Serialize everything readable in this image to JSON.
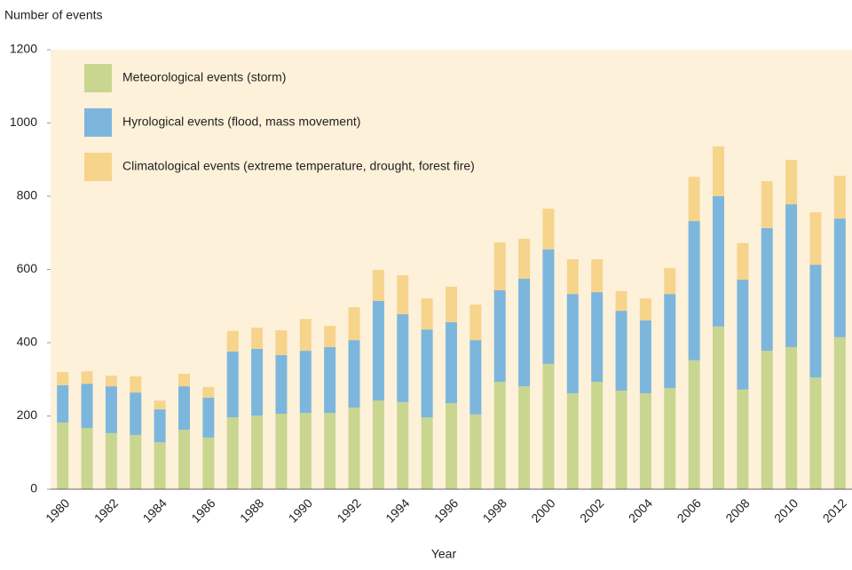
{
  "chart_data": {
    "type": "stacked_bar",
    "y_label": "Number of events",
    "x_label": "Year",
    "categories": [
      "1980",
      null,
      "1982",
      null,
      "1984",
      null,
      "1986",
      null,
      "1988",
      null,
      "1990",
      null,
      "1992",
      null,
      "1994",
      null,
      "1996",
      null,
      "1998",
      null,
      "2000",
      null,
      "2002",
      null,
      "2004",
      null,
      "2006",
      null,
      "2008",
      null,
      "2010",
      null,
      "2012"
    ],
    "series": [
      {
        "name": "Meteorological events (storm)",
        "color": "#c9d68f",
        "values": [
          182,
          167,
          153,
          148,
          128,
          162,
          141,
          196,
          201,
          206,
          208,
          208,
          223,
          242,
          238,
          196,
          235,
          204,
          293,
          281,
          342,
          262,
          293,
          269,
          262,
          276,
          352,
          444,
          272,
          378,
          388,
          305,
          415
        ]
      },
      {
        "name": "Hyrological events (flood, mass movement)",
        "color": "#7db6dd",
        "values": [
          102,
          121,
          128,
          116,
          90,
          119,
          109,
          180,
          182,
          160,
          170,
          180,
          184,
          272,
          240,
          240,
          221,
          203,
          250,
          294,
          313,
          271,
          245,
          218,
          199,
          257,
          380,
          356,
          300,
          335,
          390,
          308,
          324
        ]
      },
      {
        "name": "Climatological events (extreme temperature, drought, forest fire)",
        "color": "#f6d48b",
        "values": [
          36,
          34,
          29,
          44,
          24,
          34,
          29,
          56,
          58,
          68,
          87,
          58,
          90,
          85,
          106,
          85,
          97,
          97,
          131,
          109,
          111,
          95,
          90,
          54,
          60,
          71,
          121,
          136,
          100,
          128,
          121,
          143,
          117
        ]
      }
    ],
    "ylim": [
      0,
      1200
    ],
    "yticks": [
      0,
      200,
      400,
      600,
      800,
      1000,
      1200
    ],
    "grid": false,
    "legend": "top-left",
    "background": "#fdf1da"
  }
}
